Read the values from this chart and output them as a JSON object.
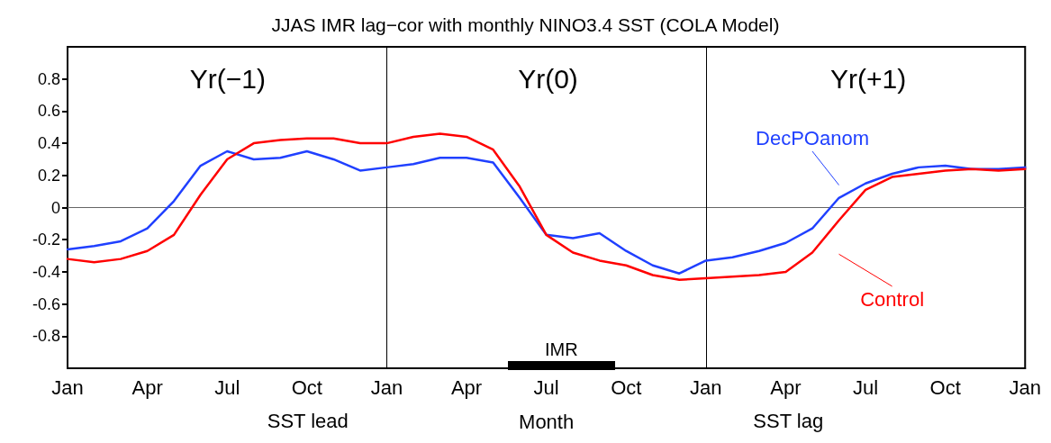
{
  "chart_data": {
    "type": "line",
    "title": "JJAS IMR lag−cor with monthly NINO3.4 SST (COLA Model)",
    "xlabel": "Month",
    "categories": [
      "Jan",
      null,
      null,
      "Apr",
      null,
      null,
      "Jul",
      null,
      null,
      "Oct",
      null,
      null,
      "Jan",
      null,
      null,
      "Apr",
      null,
      null,
      "Jul",
      null,
      null,
      "Oct",
      null,
      null,
      "Jan",
      null,
      null,
      "Apr",
      null,
      null,
      "Jul",
      null,
      null,
      "Oct",
      null,
      null,
      "Jan"
    ],
    "series": [
      {
        "name": "DecPOanom",
        "color": "#2040ff",
        "values": [
          -0.26,
          -0.24,
          -0.21,
          -0.13,
          0.04,
          0.26,
          0.35,
          0.3,
          0.31,
          0.35,
          0.3,
          0.23,
          0.25,
          0.27,
          0.31,
          0.31,
          0.28,
          0.06,
          -0.17,
          -0.19,
          -0.16,
          -0.27,
          -0.36,
          -0.41,
          -0.33,
          -0.31,
          -0.27,
          -0.22,
          -0.13,
          0.06,
          0.15,
          0.21,
          0.25,
          0.26,
          0.24,
          0.24,
          0.25
        ]
      },
      {
        "name": "Control",
        "color": "#ff0000",
        "values": [
          -0.32,
          -0.34,
          -0.32,
          -0.27,
          -0.17,
          0.08,
          0.3,
          0.4,
          0.42,
          0.43,
          0.43,
          0.4,
          0.4,
          0.44,
          0.46,
          0.44,
          0.36,
          0.13,
          -0.17,
          -0.28,
          -0.33,
          -0.36,
          -0.42,
          -0.45,
          -0.44,
          -0.43,
          -0.42,
          -0.4,
          -0.28,
          -0.08,
          0.11,
          0.19,
          0.21,
          0.23,
          0.24,
          0.23,
          0.24
        ]
      }
    ],
    "ylim": [
      -1,
      1
    ],
    "yticks": [
      -0.8,
      -0.6,
      -0.4,
      -0.2,
      0,
      0.2,
      0.4,
      0.6,
      0.8
    ],
    "ref_lines": [
      {
        "axis": "y",
        "value": 0,
        "color": "#666666"
      }
    ],
    "annotations": [
      "Yr(−1)",
      "Yr(0)",
      "Yr(+1)",
      "SST lead",
      "SST lag",
      "IMR"
    ],
    "marker": "none",
    "line_style": "solid"
  }
}
